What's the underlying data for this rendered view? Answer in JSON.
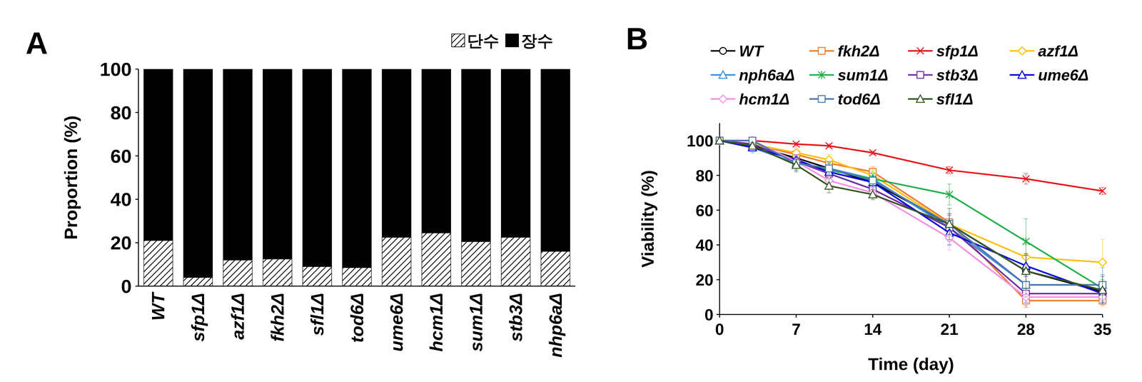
{
  "chart_data": [
    {
      "panel": "A",
      "type": "bar",
      "stacked": true,
      "y_label": "Proportion (%)",
      "categories": [
        "WT",
        "sfp1Δ",
        "azf1Δ",
        "fkh2Δ",
        "sfl1Δ",
        "tod6Δ",
        "ume6Δ",
        "hcm1Δ",
        "sum1Δ",
        "stb3Δ",
        "nhp6aΔ"
      ],
      "series": [
        {
          "name": "단수",
          "color": "#000000",
          "values": [
            21,
            4,
            12,
            12.5,
            9,
            8.5,
            22.5,
            24.5,
            20.5,
            22.5,
            16
          ]
        },
        {
          "name": "장수",
          "color": "#000000",
          "values": [
            79,
            96,
            88,
            87.5,
            91,
            91.5,
            77.5,
            75.5,
            79.5,
            77.5,
            84
          ]
        }
      ],
      "ylim": [
        0,
        100
      ],
      "yticks": [
        0,
        20,
        40,
        60,
        80,
        100
      ],
      "legend": "top-right"
    },
    {
      "panel": "B",
      "type": "line",
      "x_label": "Time (day)",
      "y_label": "Viability (%)",
      "x": [
        0,
        3,
        7,
        10,
        14,
        21,
        28,
        35
      ],
      "xlim": [
        0,
        35
      ],
      "xticks": [
        0,
        7,
        14,
        21,
        28,
        35
      ],
      "ylim": [
        0,
        110
      ],
      "yticks": [
        0,
        20,
        40,
        60,
        80,
        100
      ],
      "legend": "top",
      "series": [
        {
          "name": "WT",
          "color": "#000000",
          "marker": "circle",
          "values": [
            100,
            97,
            90,
            84,
            76,
            52,
            25,
            13
          ],
          "errors": [
            0,
            2,
            3,
            3,
            3,
            6,
            8,
            6
          ]
        },
        {
          "name": "fkh2Δ",
          "color": "#ED7D31",
          "marker": "square",
          "values": [
            100,
            98,
            92,
            87,
            82,
            53,
            8,
            8
          ],
          "errors": [
            0,
            2,
            3,
            3,
            3,
            5,
            4,
            3
          ]
        },
        {
          "name": "sfp1Δ",
          "color": "#E8141B",
          "marker": "x",
          "values": [
            100,
            100,
            98,
            97,
            93,
            83,
            78,
            71
          ],
          "errors": [
            0,
            1,
            1,
            1,
            1,
            2,
            3,
            2
          ]
        },
        {
          "name": "azf1Δ",
          "color": "#FFC000",
          "marker": "diamond",
          "values": [
            100,
            98,
            93,
            89,
            80,
            52,
            33,
            30
          ],
          "errors": [
            0,
            2,
            3,
            3,
            3,
            6,
            8,
            13
          ]
        },
        {
          "name": "nph6aΔ",
          "color": "#3A8DDE",
          "marker": "triangle",
          "values": [
            100,
            96,
            87,
            84,
            78,
            50,
            17,
            17
          ],
          "errors": [
            0,
            3,
            4,
            4,
            3,
            8,
            12,
            10
          ]
        },
        {
          "name": "sum1Δ",
          "color": "#22B14C",
          "marker": "asterisk",
          "values": [
            100,
            98,
            88,
            83,
            78,
            69,
            42,
            15
          ],
          "errors": [
            0,
            2,
            4,
            4,
            3,
            6,
            13,
            5
          ]
        },
        {
          "name": "stb3Δ",
          "color": "#7030A0",
          "marker": "square",
          "values": [
            100,
            98,
            88,
            81,
            72,
            50,
            12,
            12
          ],
          "errors": [
            0,
            2,
            4,
            4,
            3,
            7,
            5,
            6
          ]
        },
        {
          "name": "ume6Δ",
          "color": "#0000E0",
          "marker": "triangle",
          "values": [
            100,
            96,
            89,
            82,
            76,
            47,
            28,
            12
          ],
          "errors": [
            0,
            2,
            3,
            3,
            3,
            7,
            6,
            5
          ]
        },
        {
          "name": "hcm1Δ",
          "color": "#F490E6",
          "marker": "diamond",
          "values": [
            100,
            100,
            88,
            77,
            70,
            44,
            10,
            10
          ],
          "errors": [
            0,
            1,
            4,
            4,
            3,
            7,
            4,
            4
          ]
        },
        {
          "name": "tod6Δ",
          "color": "#4A78B0",
          "marker": "square",
          "values": [
            100,
            100,
            87,
            84,
            77,
            52,
            17,
            17
          ],
          "errors": [
            0,
            1,
            4,
            4,
            3,
            6,
            7,
            6
          ]
        },
        {
          "name": "sfl1Δ",
          "color": "#375623",
          "marker": "triangle",
          "values": [
            100,
            97,
            86,
            74,
            69,
            52,
            25,
            14
          ],
          "errors": [
            0,
            2,
            4,
            4,
            3,
            9,
            10,
            8
          ]
        }
      ]
    }
  ]
}
